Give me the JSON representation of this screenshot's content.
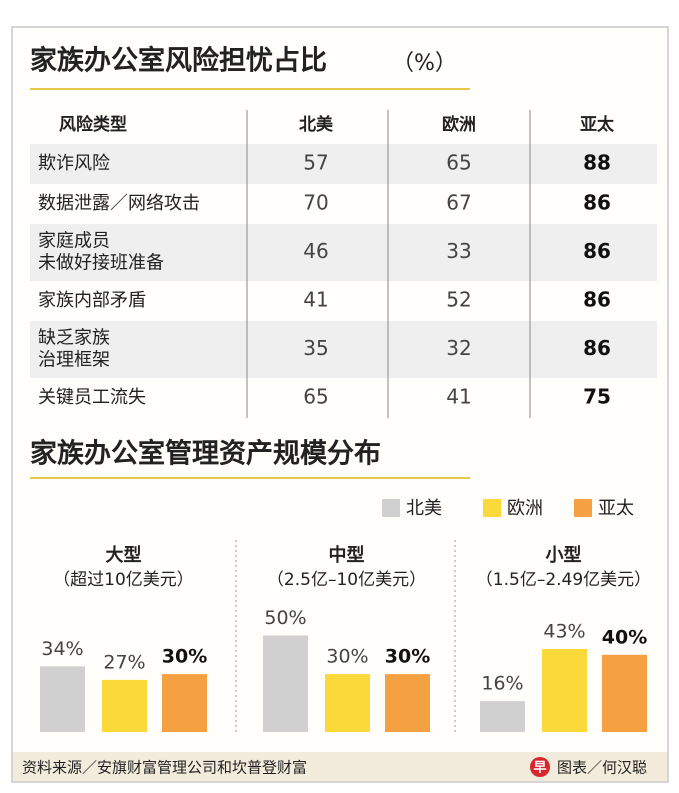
{
  "table": {
    "title": "家族办公室风险担忧占比",
    "title_unit": "（%）",
    "headers": [
      "风险类型",
      "北美",
      "欧洲",
      "亚太"
    ],
    "rows": [
      {
        "label": [
          "欺诈风险"
        ],
        "values": [
          57,
          65,
          88
        ]
      },
      {
        "label": [
          "数据泄露／网络攻击"
        ],
        "values": [
          70,
          67,
          86
        ]
      },
      {
        "label": [
          "家庭成员",
          "未做好接班准备"
        ],
        "values": [
          46,
          33,
          86
        ]
      },
      {
        "label": [
          "家族内部矛盾"
        ],
        "values": [
          41,
          52,
          86
        ]
      },
      {
        "label": [
          "缺乏家族",
          "治理框架"
        ],
        "values": [
          35,
          32,
          86
        ]
      },
      {
        "label": [
          "关键员工流失"
        ],
        "values": [
          65,
          41,
          75
        ]
      }
    ]
  },
  "chart_data": {
    "type": "bar",
    "title": "家族办公室管理资产规模分布",
    "categories": [
      "大型",
      "中型",
      "小型"
    ],
    "category_subtitles": [
      "（超过10亿美元）",
      "（2.5亿–10亿美元）",
      "（1.5亿–2.49亿美元）"
    ],
    "legend": "top-right",
    "series": [
      {
        "name": "北美",
        "color": "#d0d0d0",
        "values": [
          34,
          50,
          16
        ],
        "value_labels": [
          "34%",
          "50%",
          "16%"
        ]
      },
      {
        "name": "欧洲",
        "color": "#fcd93a",
        "values": [
          27,
          30,
          43
        ],
        "value_labels": [
          "27%",
          "30%",
          "43%"
        ]
      },
      {
        "name": "亚太",
        "color": "#f5a142",
        "values": [
          30,
          30,
          40
        ],
        "value_labels": [
          "30%",
          "30%",
          "40%"
        ]
      }
    ]
  },
  "footer": {
    "source": "资料来源／安旗财富管理公司和坎普登财富",
    "logo": "早",
    "credit": "图表／何汉聪"
  }
}
